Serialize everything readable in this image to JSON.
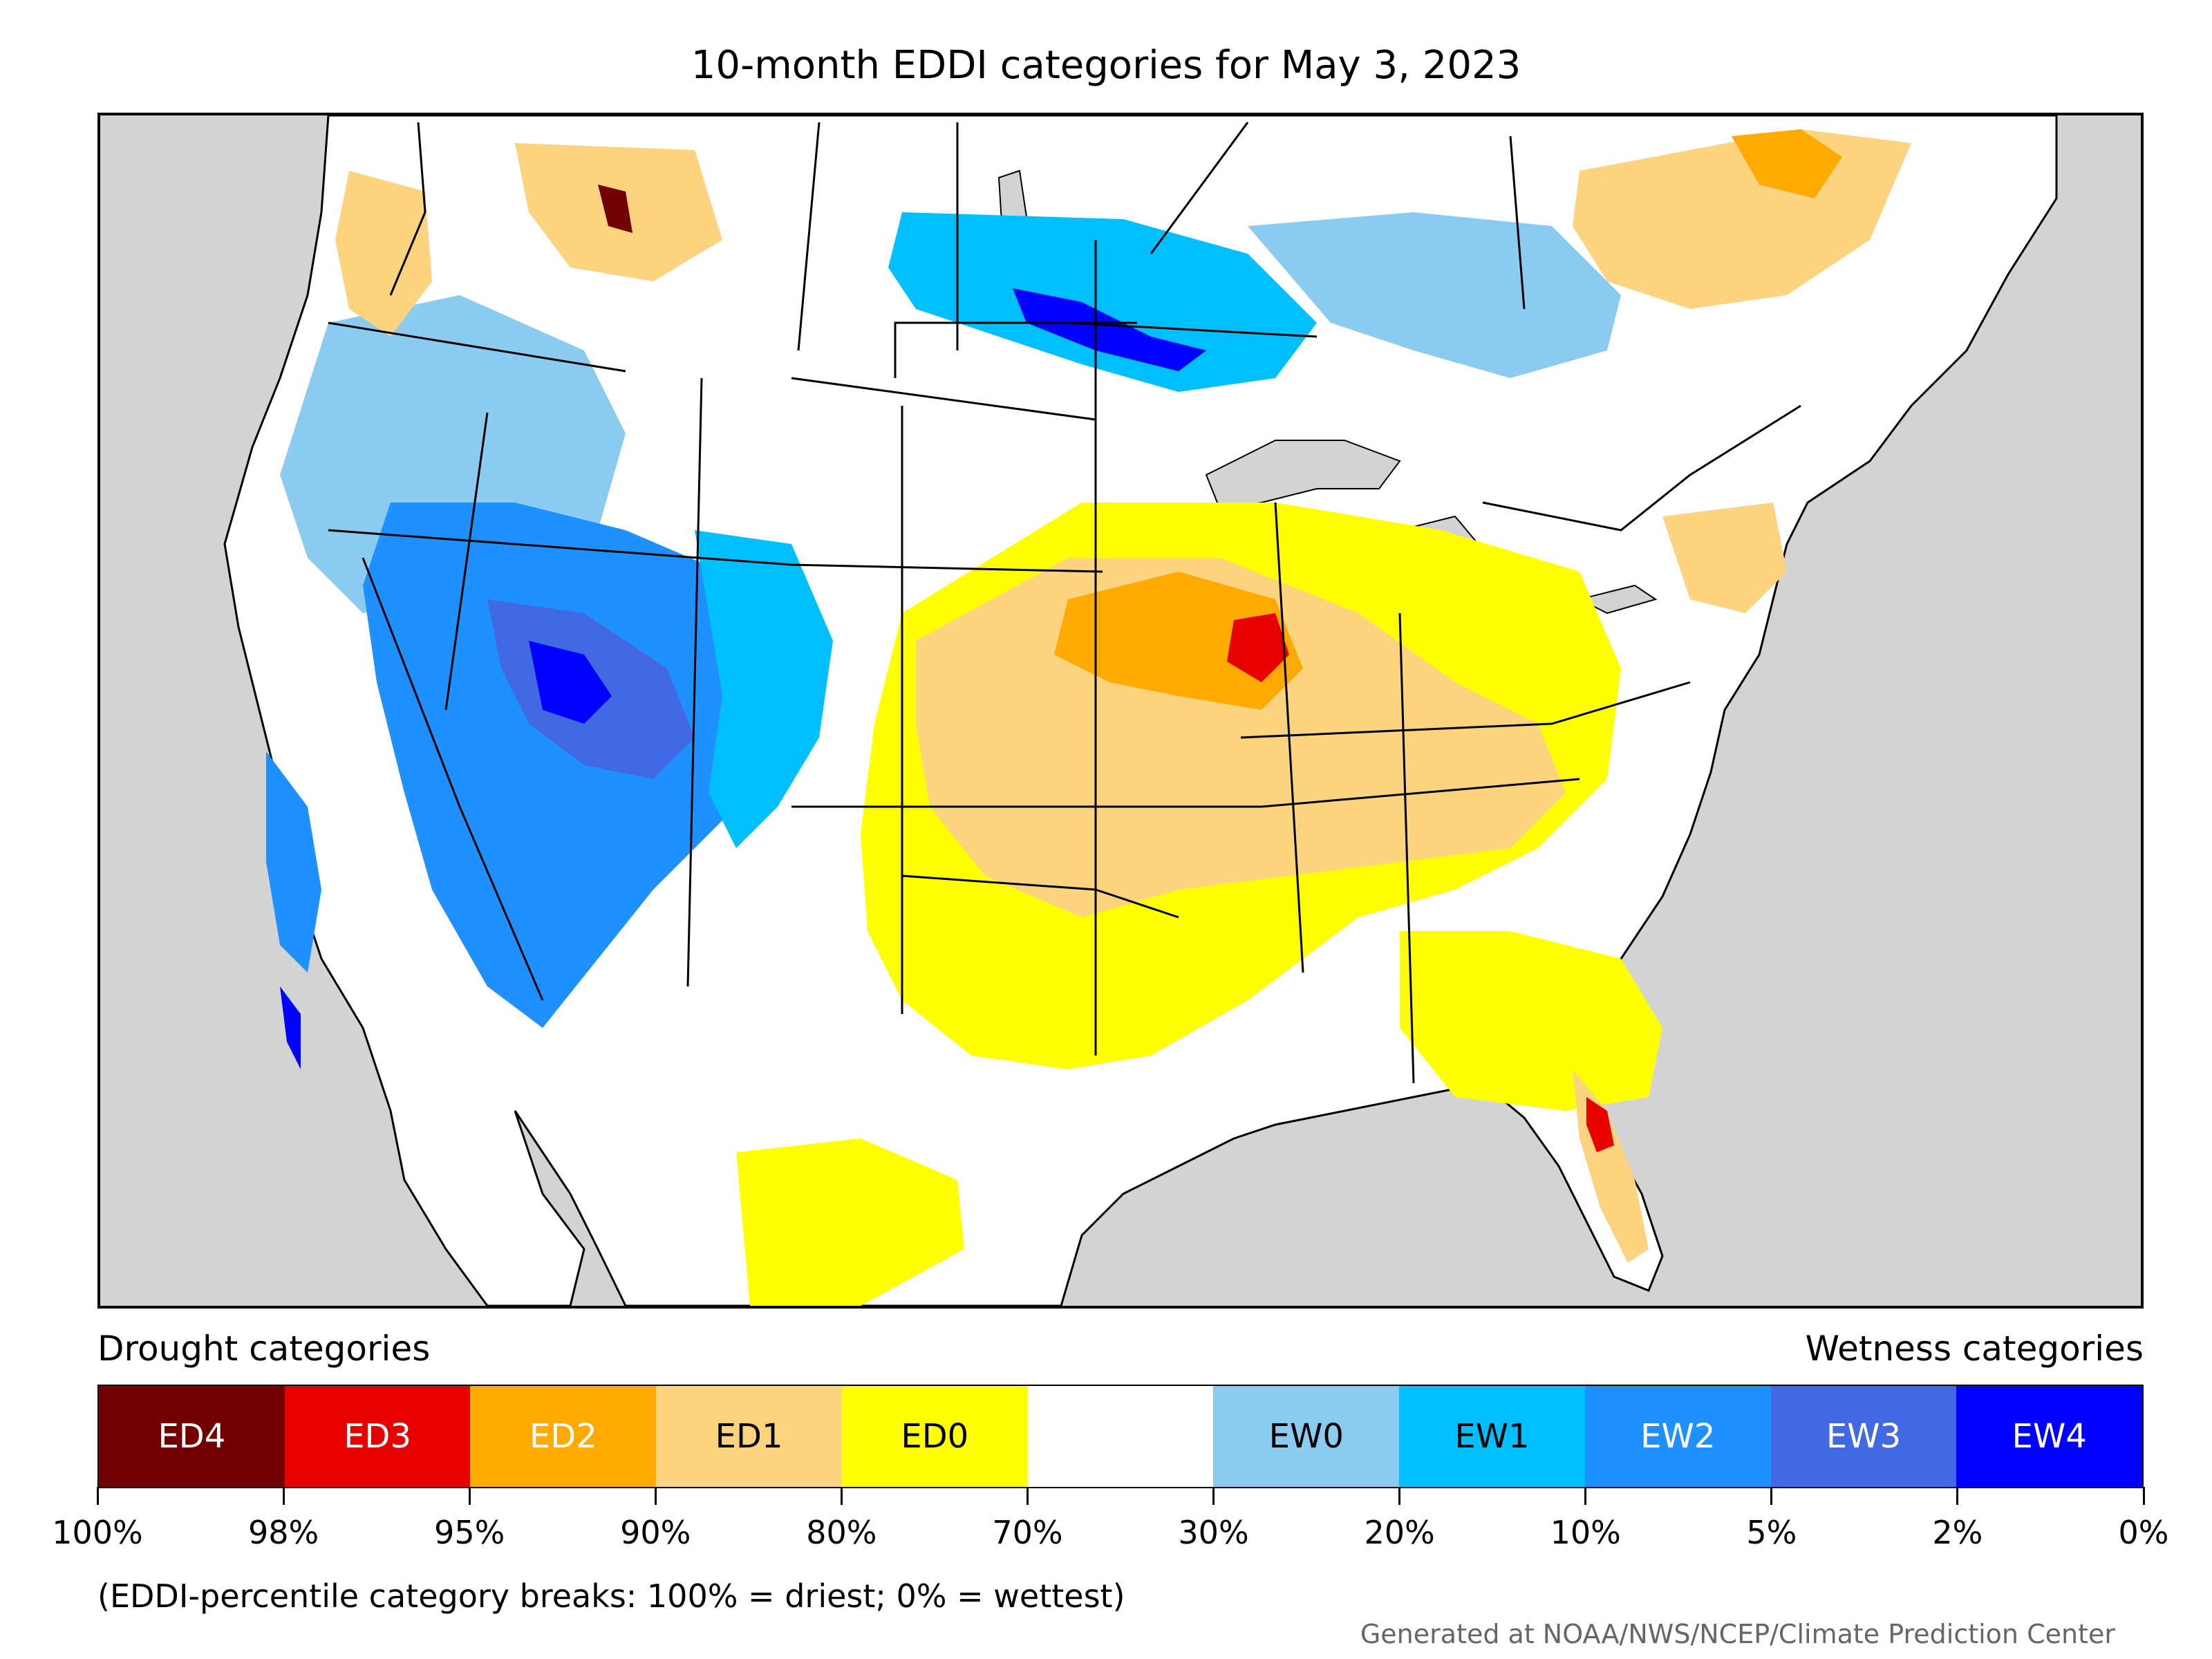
{
  "title": "10-month EDDI categories for May 3, 2023",
  "legend": {
    "drought_heading": "Drought categories",
    "wetness_heading": "Wetness categories",
    "categories": [
      {
        "label": "ED4",
        "color": "#730000",
        "text_color": "#ffffff"
      },
      {
        "label": "ED3",
        "color": "#e60000",
        "text_color": "#ffffff"
      },
      {
        "label": "ED2",
        "color": "#ffaa00",
        "text_color": "#ffffff"
      },
      {
        "label": "ED1",
        "color": "#fcd37f",
        "text_color": "#000000"
      },
      {
        "label": "ED0",
        "color": "#ffff00",
        "text_color": "#000000"
      },
      {
        "label": "",
        "color": "#ffffff",
        "text_color": "#000000"
      },
      {
        "label": "EW0",
        "color": "#8ccbf0",
        "text_color": "#000000"
      },
      {
        "label": "EW1",
        "color": "#00bfff",
        "text_color": "#000000"
      },
      {
        "label": "EW2",
        "color": "#1e90ff",
        "text_color": "#ffffff"
      },
      {
        "label": "EW3",
        "color": "#4169e1",
        "text_color": "#ffffff"
      },
      {
        "label": "EW4",
        "color": "#0000ff",
        "text_color": "#ffffff"
      }
    ],
    "breaks": [
      "100%",
      "98%",
      "95%",
      "90%",
      "80%",
      "70%",
      "30%",
      "20%",
      "10%",
      "5%",
      "2%",
      "0%"
    ],
    "note": "(EDDI-percentile category breaks: 100% = driest; 0% = wettest)"
  },
  "credit": "Generated at NOAA/NWS/NCEP/Climate Prediction Center",
  "map": {
    "background_color": "#d3d3d3",
    "land_color": "#ffffff",
    "border_color": "#000000",
    "regions": [
      {
        "category": "EW0",
        "name": "pacific-northwest-wet"
      },
      {
        "category": "EW2",
        "name": "great-basin-wet"
      },
      {
        "category": "EW4",
        "name": "utah-nevada-core-wet"
      },
      {
        "category": "EW1",
        "name": "north-dakota-wet"
      },
      {
        "category": "ED1",
        "name": "central-plains-dry"
      },
      {
        "category": "ED2",
        "name": "iowa-missouri-dry"
      },
      {
        "category": "ED3",
        "name": "iowa-illinois-hotspot"
      },
      {
        "category": "ED0",
        "name": "southern-plains-dry"
      },
      {
        "category": "ED1",
        "name": "ohio-valley-dry"
      },
      {
        "category": "ED1",
        "name": "southeast-canada-dry"
      },
      {
        "category": "ED3",
        "name": "florida-hotspot"
      }
    ]
  }
}
